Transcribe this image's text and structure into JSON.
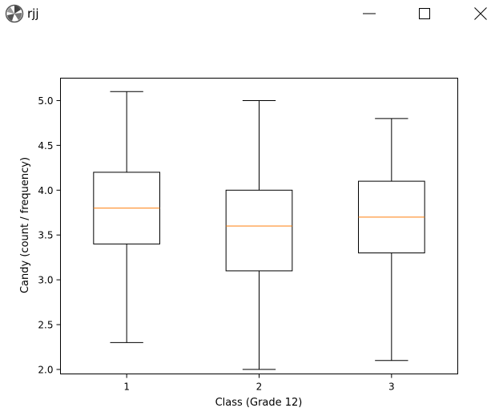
{
  "window": {
    "title": "rjj",
    "icons": {
      "app": "matplotlib-logo-icon",
      "minimize": "minimize-icon",
      "maximize": "maximize-icon",
      "close": "close-icon"
    }
  },
  "chart_data": {
    "type": "box",
    "title": "",
    "xlabel": "Class (Grade 12)",
    "ylabel": "Candy (count / frequency)",
    "categories": [
      "1",
      "2",
      "3"
    ],
    "ylim": [
      1.95,
      5.25
    ],
    "yticks": [
      "2.0",
      "2.5",
      "3.0",
      "3.5",
      "4.0",
      "4.5",
      "5.0"
    ],
    "boxes": [
      {
        "label": "1",
        "whisker_low": 2.3,
        "q1": 3.4,
        "median": 3.8,
        "q3": 4.2,
        "whisker_high": 5.1
      },
      {
        "label": "2",
        "whisker_low": 2.0,
        "q1": 3.1,
        "median": 3.6,
        "q3": 4.0,
        "whisker_high": 5.0
      },
      {
        "label": "3",
        "whisker_low": 2.1,
        "q1": 3.3,
        "median": 3.7,
        "q3": 4.1,
        "whisker_high": 4.8
      }
    ],
    "median_color": "#ff7f0e",
    "box_color": "#000000",
    "grid": false
  }
}
